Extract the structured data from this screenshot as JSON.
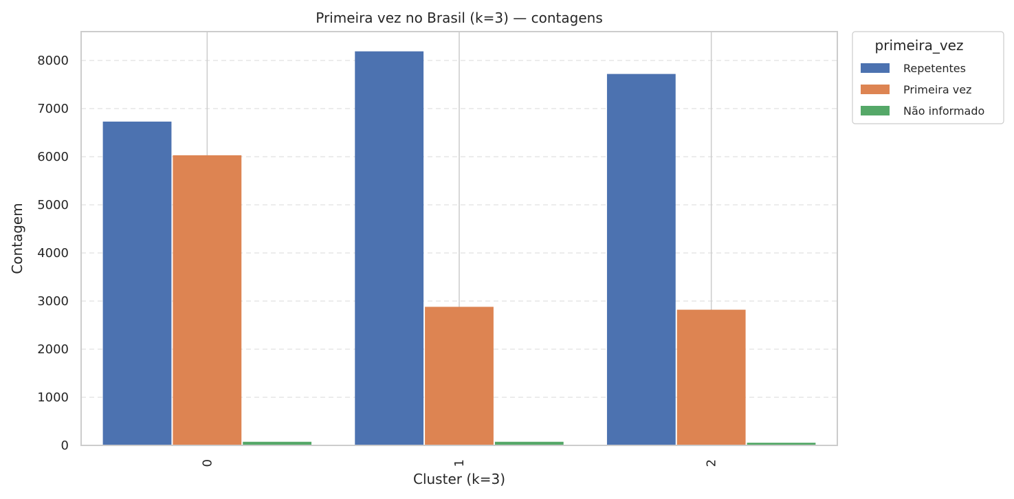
{
  "chart_data": {
    "type": "bar",
    "title": "Primeira vez no Brasil (k=3) — contagens",
    "xlabel": "Cluster (k=3)",
    "ylabel": "Contagem",
    "categories": [
      "0",
      "1",
      "2"
    ],
    "ylim": [
      0,
      8600
    ],
    "yticks": [
      0,
      1000,
      2000,
      3000,
      4000,
      5000,
      6000,
      7000,
      8000
    ],
    "grid": true,
    "legend": {
      "title": "primeira_vez",
      "placement": "outside-top-right"
    },
    "series": [
      {
        "name": "Repetentes",
        "color": "#4c72b0",
        "values": [
          6730,
          8190,
          7720
        ]
      },
      {
        "name": "Primeira vez",
        "color": "#dd8452",
        "values": [
          6030,
          2880,
          2820
        ]
      },
      {
        "name": "Não informado",
        "color": "#55a868",
        "values": [
          75,
          75,
          55
        ]
      }
    ]
  }
}
